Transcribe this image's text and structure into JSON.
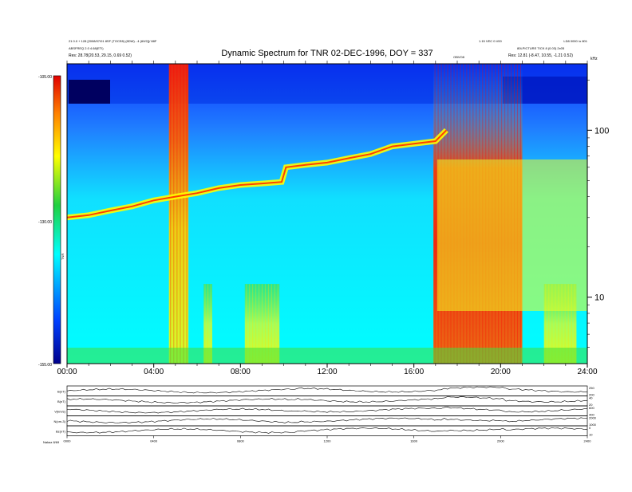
{
  "chart_data": {
    "type": "heatmap",
    "title": "Dynamic Spectrum for TNR 02-DEC-1996, DOY = 337",
    "header_left": [
      "21 0.0 + 128 [2008/07/01 8SF (TOCE8) (8DW) - 4 (60/2)]/ 88F",
      "ABSFREQ 2.0 4.68(ETI)",
      "Res:     28.78(20.53, 29.15, 0.69 0.52)"
    ],
    "header_right": [
      "1.15 VEC 0.V00",
      "LD8 0000 /o 801",
      "80LPICTURE TICK 8 (0.03) 2x05",
      "Res:    12.81 (-8.47, 10.55, -1.21 0.52)"
    ],
    "top_tick_label": "OBVO8",
    "y_unit_label": "kHz",
    "colorbar": {
      "label": "TNR",
      "range": [
        -155,
        -105
      ],
      "tick_labels": [
        "-105.00",
        "-130.00",
        "-155.00"
      ]
    },
    "x_axis": {
      "range_hours": [
        0,
        24
      ],
      "tick_labels": [
        "00:00",
        "04:00",
        "08:00",
        "12:00",
        "16:00",
        "20:00",
        "24:00"
      ]
    },
    "y_axis": {
      "scale": "log",
      "range_khz": [
        4,
        250
      ],
      "tick_labels": [
        "10",
        "100"
      ]
    },
    "plasma_line_khz": [
      [
        0,
        30
      ],
      [
        1,
        31
      ],
      [
        2,
        33
      ],
      [
        3,
        35
      ],
      [
        4,
        38
      ],
      [
        5,
        40
      ],
      [
        6,
        42
      ],
      [
        7,
        45
      ],
      [
        8,
        47
      ],
      [
        9,
        48
      ],
      [
        9.9,
        49
      ],
      [
        10.1,
        60
      ],
      [
        11,
        62
      ],
      [
        12,
        64
      ],
      [
        13,
        68
      ],
      [
        14,
        72
      ],
      [
        15,
        80
      ],
      [
        16,
        83
      ],
      [
        17,
        86
      ],
      [
        17.5,
        100
      ]
    ],
    "noise_floor_khz": 5,
    "bursts": [
      {
        "start_h": 4.7,
        "end_h": 5.6,
        "intensity": "high"
      },
      {
        "start_h": 6.3,
        "end_h": 6.7,
        "intensity": "moderate"
      },
      {
        "start_h": 8.2,
        "end_h": 9.8,
        "intensity": "moderate"
      },
      {
        "start_h": 16.9,
        "end_h": 21.0,
        "intensity": "high"
      },
      {
        "start_h": 22.0,
        "end_h": 23.5,
        "intensity": "moderate"
      }
    ],
    "panels": [
      {
        "label": "B(nT)",
        "scale": [
          "200",
          "250"
        ]
      },
      {
        "label": "B(nT)",
        "scale": [
          "20",
          "40"
        ]
      },
      {
        "label": "V(km/s)",
        "scale": [
          "400",
          "600"
        ]
      },
      {
        "label": "N(cm-3)",
        "scale": [
          "1000",
          "2000"
        ]
      },
      {
        "label": "Bz(nT)",
        "scale": [
          "10",
          "0"
        ]
      }
    ],
    "bottom_x_tick_labels": [
      "0000",
      "0400",
      "0800",
      "1200",
      "1600",
      "2000",
      "2400"
    ],
    "bottom_corner_label": "Nakaz   8/69"
  }
}
